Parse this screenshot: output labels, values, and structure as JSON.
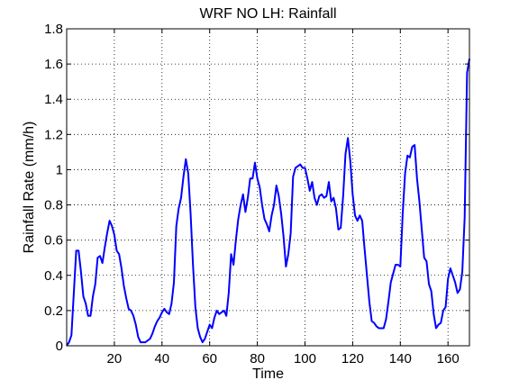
{
  "chart_data": {
    "type": "line",
    "title": "WRF NO LH: Rainfall",
    "xlabel": "Time",
    "ylabel": "Rainfall Rate (mm/h)",
    "xlim": [
      0,
      169
    ],
    "ylim": [
      0,
      1.8
    ],
    "xticks": [
      20,
      40,
      60,
      80,
      100,
      120,
      140,
      160
    ],
    "yticks": [
      0,
      0.2,
      0.4,
      0.6,
      0.8,
      1,
      1.2,
      1.4,
      1.6,
      1.8
    ],
    "xtick_labels": [
      "20",
      "40",
      "60",
      "80",
      "100",
      "120",
      "140",
      "160"
    ],
    "ytick_labels": [
      "0",
      "0.2",
      "0.4",
      "0.6",
      "0.8",
      "1",
      "1.2",
      "1.4",
      "1.6",
      "1.8"
    ],
    "grid": true,
    "grid_style": "dotted",
    "line_color": "#0000ff",
    "series": [
      {
        "x": [
          0,
          1,
          2,
          3,
          4,
          5,
          6,
          7,
          8,
          9,
          10,
          11,
          12,
          13,
          14,
          15,
          16,
          17,
          18,
          19,
          20,
          21,
          22,
          23,
          24,
          25,
          26,
          27,
          28,
          29,
          30,
          31,
          32,
          33,
          34,
          35,
          36,
          37,
          38,
          39,
          40,
          41,
          42,
          43,
          44,
          45,
          46,
          47,
          48,
          49,
          50,
          51,
          52,
          53,
          54,
          55,
          56,
          57,
          58,
          59,
          60,
          61,
          62,
          63,
          64,
          65,
          66,
          67,
          68,
          69,
          70,
          71,
          72,
          73,
          74,
          75,
          76,
          77,
          78,
          79,
          80,
          81,
          82,
          83,
          84,
          85,
          86,
          87,
          88,
          89,
          90,
          91,
          92,
          93,
          94,
          95,
          96,
          97,
          98,
          99,
          100,
          101,
          102,
          103,
          104,
          105,
          106,
          107,
          108,
          109,
          110,
          111,
          112,
          113,
          114,
          115,
          116,
          117,
          118,
          119,
          120,
          121,
          122,
          123,
          124,
          125,
          126,
          127,
          128,
          129,
          130,
          131,
          132,
          133,
          134,
          135,
          136,
          137,
          138,
          139,
          140,
          141,
          142,
          143,
          144,
          145,
          146,
          147,
          148,
          149,
          150,
          151,
          152,
          153,
          154,
          155,
          156,
          157,
          158,
          159,
          160,
          161,
          162,
          163,
          164,
          165,
          166,
          167,
          168,
          169
        ],
        "values": [
          0.0,
          0.02,
          0.06,
          0.3,
          0.54,
          0.54,
          0.42,
          0.28,
          0.24,
          0.17,
          0.17,
          0.28,
          0.35,
          0.5,
          0.51,
          0.47,
          0.56,
          0.64,
          0.71,
          0.68,
          0.63,
          0.54,
          0.52,
          0.44,
          0.34,
          0.27,
          0.21,
          0.2,
          0.17,
          0.12,
          0.05,
          0.02,
          0.02,
          0.02,
          0.03,
          0.04,
          0.07,
          0.11,
          0.14,
          0.16,
          0.19,
          0.21,
          0.19,
          0.18,
          0.24,
          0.36,
          0.68,
          0.78,
          0.84,
          0.96,
          1.06,
          0.98,
          0.75,
          0.46,
          0.22,
          0.1,
          0.05,
          0.02,
          0.04,
          0.08,
          0.12,
          0.1,
          0.16,
          0.2,
          0.18,
          0.19,
          0.2,
          0.17,
          0.3,
          0.52,
          0.46,
          0.6,
          0.72,
          0.8,
          0.86,
          0.76,
          0.84,
          0.95,
          0.95,
          1.04,
          0.95,
          0.9,
          0.8,
          0.72,
          0.69,
          0.65,
          0.74,
          0.8,
          0.91,
          0.85,
          0.75,
          0.62,
          0.45,
          0.52,
          0.64,
          0.96,
          1.01,
          1.02,
          1.03,
          1.01,
          1.01,
          0.95,
          0.88,
          0.93,
          0.84,
          0.8,
          0.85,
          0.86,
          0.84,
          0.85,
          0.93,
          0.82,
          0.84,
          0.78,
          0.66,
          0.67,
          0.85,
          1.09,
          1.18,
          1.05,
          0.86,
          0.74,
          0.71,
          0.74,
          0.71,
          0.55,
          0.4,
          0.25,
          0.14,
          0.13,
          0.11,
          0.1,
          0.1,
          0.1,
          0.15,
          0.25,
          0.36,
          0.41,
          0.46,
          0.46,
          0.45,
          0.75,
          0.98,
          1.08,
          1.07,
          1.13,
          1.14,
          0.95,
          0.82,
          0.66,
          0.5,
          0.48,
          0.35,
          0.31,
          0.18,
          0.1,
          0.12,
          0.13,
          0.2,
          0.22,
          0.38,
          0.44,
          0.4,
          0.36,
          0.3,
          0.32,
          0.42,
          0.73,
          1.55,
          1.63
        ]
      }
    ]
  }
}
